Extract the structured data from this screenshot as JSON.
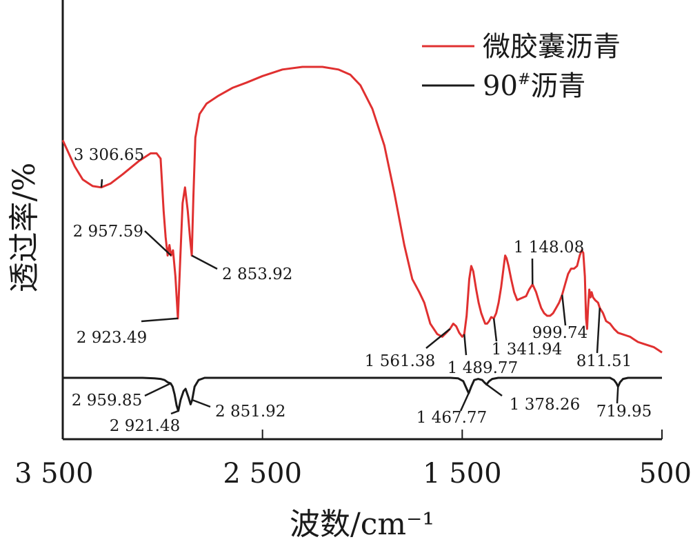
{
  "chart_data": {
    "type": "line",
    "xlabel": "波数/cm⁻¹",
    "ylabel": "透过率/%",
    "xlim": [
      3500,
      500
    ],
    "x_ticks": [
      3500,
      2500,
      1500,
      500
    ],
    "x_tick_labels": [
      "3 500",
      "2 500",
      "1 500",
      "500"
    ],
    "grid": false,
    "legend_position": "top-right",
    "series": [
      {
        "name": "微胶囊沥青",
        "color": "#e03030",
        "stacked_position": "upper",
        "points": [
          [
            3500,
            0.82
          ],
          [
            3470,
            0.77
          ],
          [
            3440,
            0.72
          ],
          [
            3400,
            0.67
          ],
          [
            3350,
            0.645
          ],
          [
            3306.65,
            0.64
          ],
          [
            3260,
            0.655
          ],
          [
            3200,
            0.69
          ],
          [
            3120,
            0.74
          ],
          [
            3060,
            0.77
          ],
          [
            3030,
            0.77
          ],
          [
            3010,
            0.75
          ],
          [
            2995,
            0.55
          ],
          [
            2985,
            0.45
          ],
          [
            2975,
            0.38
          ],
          [
            2966,
            0.42
          ],
          [
            2957.59,
            0.38
          ],
          [
            2948,
            0.4
          ],
          [
            2936,
            0.3
          ],
          [
            2923.49,
            0.14
          ],
          [
            2912,
            0.36
          ],
          [
            2900,
            0.58
          ],
          [
            2888,
            0.64
          ],
          [
            2874,
            0.55
          ],
          [
            2862,
            0.44
          ],
          [
            2853.92,
            0.38
          ],
          [
            2846,
            0.6
          ],
          [
            2836,
            0.83
          ],
          [
            2815,
            0.92
          ],
          [
            2780,
            0.96
          ],
          [
            2720,
            0.99
          ],
          [
            2650,
            1.02
          ],
          [
            2580,
            1.04
          ],
          [
            2500,
            1.065
          ],
          [
            2400,
            1.09
          ],
          [
            2300,
            1.1
          ],
          [
            2200,
            1.1
          ],
          [
            2120,
            1.09
          ],
          [
            2060,
            1.07
          ],
          [
            2010,
            1.03
          ],
          [
            1950,
            0.94
          ],
          [
            1890,
            0.8
          ],
          [
            1840,
            0.62
          ],
          [
            1790,
            0.42
          ],
          [
            1750,
            0.29
          ],
          [
            1715,
            0.24
          ],
          [
            1690,
            0.2
          ],
          [
            1660,
            0.12
          ],
          [
            1625,
            0.08
          ],
          [
            1600,
            0.07
          ],
          [
            1580,
            0.085
          ],
          [
            1561.38,
            0.1
          ],
          [
            1545,
            0.12
          ],
          [
            1530,
            0.11
          ],
          [
            1515,
            0.085
          ],
          [
            1500,
            0.07
          ],
          [
            1489.77,
            0.08
          ],
          [
            1478,
            0.15
          ],
          [
            1465,
            0.29
          ],
          [
            1455,
            0.34
          ],
          [
            1445,
            0.32
          ],
          [
            1430,
            0.25
          ],
          [
            1418,
            0.2
          ],
          [
            1405,
            0.16
          ],
          [
            1395,
            0.14
          ],
          [
            1385,
            0.12
          ],
          [
            1375,
            0.12
          ],
          [
            1365,
            0.13
          ],
          [
            1355,
            0.145
          ],
          [
            1341.94,
            0.14
          ],
          [
            1330,
            0.16
          ],
          [
            1318,
            0.2
          ],
          [
            1305,
            0.26
          ],
          [
            1292,
            0.34
          ],
          [
            1285,
            0.38
          ],
          [
            1278,
            0.37
          ],
          [
            1268,
            0.34
          ],
          [
            1255,
            0.29
          ],
          [
            1240,
            0.24
          ],
          [
            1225,
            0.21
          ],
          [
            1210,
            0.215
          ],
          [
            1195,
            0.22
          ],
          [
            1180,
            0.225
          ],
          [
            1165,
            0.25
          ],
          [
            1148.08,
            0.27
          ],
          [
            1130,
            0.24
          ],
          [
            1118,
            0.21
          ],
          [
            1105,
            0.18
          ],
          [
            1090,
            0.16
          ],
          [
            1075,
            0.15
          ],
          [
            1060,
            0.15
          ],
          [
            1045,
            0.16
          ],
          [
            1030,
            0.18
          ],
          [
            1015,
            0.2
          ],
          [
            999.74,
            0.23
          ],
          [
            985,
            0.27
          ],
          [
            970,
            0.31
          ],
          [
            955,
            0.33
          ],
          [
            940,
            0.33
          ],
          [
            925,
            0.34
          ],
          [
            912,
            0.38
          ],
          [
            902,
            0.4
          ],
          [
            894,
            0.39
          ],
          [
            886,
            0.3
          ],
          [
            880,
            0.14
          ],
          [
            875,
            0.1
          ],
          [
            870,
            0.18
          ],
          [
            864,
            0.25
          ],
          [
            858,
            0.22
          ],
          [
            852,
            0.24
          ],
          [
            845,
            0.22
          ],
          [
            835,
            0.21
          ],
          [
            820,
            0.2
          ],
          [
            811.51,
            0.18
          ],
          [
            795,
            0.16
          ],
          [
            780,
            0.13
          ],
          [
            760,
            0.12
          ],
          [
            740,
            0.1
          ],
          [
            720,
            0.085
          ],
          [
            700,
            0.08
          ],
          [
            680,
            0.075
          ],
          [
            660,
            0.07
          ],
          [
            640,
            0.06
          ],
          [
            620,
            0.05
          ],
          [
            600,
            0.045
          ],
          [
            580,
            0.04
          ],
          [
            560,
            0.035
          ],
          [
            540,
            0.03
          ],
          [
            520,
            0.02
          ],
          [
            500,
            0.01
          ]
        ]
      },
      {
        "name": "90#沥青",
        "color": "#1a1a1a",
        "stacked_position": "lower",
        "points": [
          [
            3500,
            0.0
          ],
          [
            3100,
            0.0
          ],
          [
            3040,
            -0.005
          ],
          [
            3010,
            -0.01
          ],
          [
            2990,
            -0.02
          ],
          [
            2975,
            -0.04
          ],
          [
            2959.85,
            -0.05
          ],
          [
            2950,
            -0.08
          ],
          [
            2940,
            -0.15
          ],
          [
            2930,
            -0.25
          ],
          [
            2921.48,
            -0.3
          ],
          [
            2910,
            -0.2
          ],
          [
            2895,
            -0.12
          ],
          [
            2885,
            -0.1
          ],
          [
            2870,
            -0.18
          ],
          [
            2860,
            -0.24
          ],
          [
            2851.92,
            -0.2
          ],
          [
            2840,
            -0.08
          ],
          [
            2820,
            -0.02
          ],
          [
            2790,
            0.0
          ],
          [
            1560,
            0.0
          ],
          [
            1520,
            -0.005
          ],
          [
            1495,
            -0.03
          ],
          [
            1480,
            -0.09
          ],
          [
            1467.77,
            -0.14
          ],
          [
            1455,
            -0.08
          ],
          [
            1440,
            -0.02
          ],
          [
            1420,
            -0.01
          ],
          [
            1400,
            -0.02
          ],
          [
            1390,
            -0.04
          ],
          [
            1378.26,
            -0.06
          ],
          [
            1365,
            -0.03
          ],
          [
            1350,
            -0.01
          ],
          [
            1320,
            0.0
          ],
          [
            760,
            0.0
          ],
          [
            740,
            -0.02
          ],
          [
            728,
            -0.05
          ],
          [
            719.95,
            -0.08
          ],
          [
            710,
            -0.04
          ],
          [
            695,
            -0.01
          ],
          [
            670,
            0.0
          ],
          [
            500,
            0.0
          ]
        ]
      }
    ],
    "annotations": [
      {
        "label": "3 306.65",
        "series": "微胶囊沥青",
        "x": 3306.65
      },
      {
        "label": "2 957.59",
        "series": "微胶囊沥青",
        "x": 2957.59
      },
      {
        "label": "2 923.49",
        "series": "微胶囊沥青",
        "x": 2923.49
      },
      {
        "label": "2 853.92",
        "series": "微胶囊沥青",
        "x": 2853.92
      },
      {
        "label": "1 561.38",
        "series": "微胶囊沥青",
        "x": 1561.38
      },
      {
        "label": "1 489.77",
        "series": "微胶囊沥青",
        "x": 1489.77
      },
      {
        "label": "1 341.94",
        "series": "微胶囊沥青",
        "x": 1341.94
      },
      {
        "label": "1 148.08",
        "series": "微胶囊沥青",
        "x": 1148.08
      },
      {
        "label": "999.74",
        "series": "微胶囊沥青",
        "x": 999.74
      },
      {
        "label": "811.51",
        "series": "微胶囊沥青",
        "x": 811.51
      },
      {
        "label": "2 959.85",
        "series": "90#沥青",
        "x": 2959.85
      },
      {
        "label": "2 921.48",
        "series": "90#沥青",
        "x": 2921.48
      },
      {
        "label": "2 851.92",
        "series": "90#沥青",
        "x": 2851.92
      },
      {
        "label": "1 467.77",
        "series": "90#沥青",
        "x": 1467.77
      },
      {
        "label": "1 378.26",
        "series": "90#沥青",
        "x": 1378.26
      },
      {
        "label": "719.95",
        "series": "90#沥青",
        "x": 719.95
      }
    ]
  },
  "legend": {
    "items": [
      {
        "label": "微胶囊沥青",
        "color": "#e03030"
      },
      {
        "label": "90",
        "superscript": "#",
        "suffix": "沥青",
        "color": "#1a1a1a"
      }
    ]
  }
}
